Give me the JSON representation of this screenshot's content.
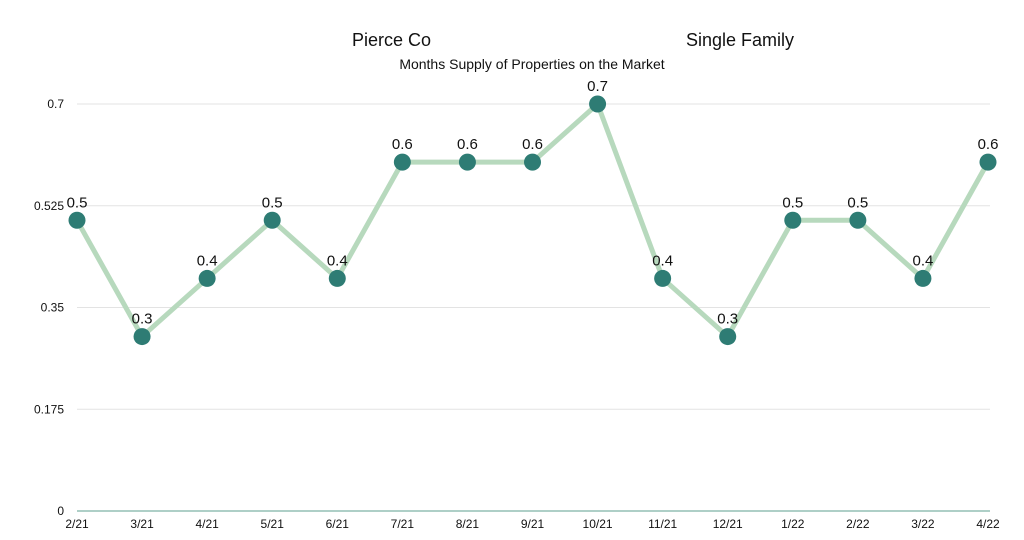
{
  "chart_data": {
    "type": "line",
    "title_left": "Pierce Co",
    "title_right": "Single Family",
    "subtitle": "Months Supply of Properties on the Market",
    "xlabel": "",
    "ylabel": "",
    "categories": [
      "2/21",
      "3/21",
      "4/21",
      "5/21",
      "6/21",
      "7/21",
      "8/21",
      "9/21",
      "10/21",
      "11/21",
      "12/21",
      "1/22",
      "2/22",
      "3/22",
      "4/22"
    ],
    "series": [
      {
        "values": [
          0.5,
          0.3,
          0.4,
          0.5,
          0.4,
          0.6,
          0.6,
          0.6,
          0.7,
          0.4,
          0.3,
          0.5,
          0.5,
          0.4,
          0.6
        ],
        "labels": [
          "0.5",
          "0.3",
          "0.4",
          "0.5",
          "0.4",
          "0.6",
          "0.6",
          "0.6",
          "0.7",
          "0.4",
          "0.3",
          "0.5",
          "0.5",
          "0.4",
          "0.6"
        ]
      }
    ],
    "yticks": [
      0,
      0.175,
      0.35,
      0.525,
      0.7
    ],
    "ytick_labels": [
      "0",
      "0.175",
      "0.35",
      "0.525",
      "0.7"
    ],
    "ylim": [
      0,
      0.7
    ],
    "grid": true,
    "legend": "none",
    "colors": {
      "line": "#b7d9bd",
      "marker": "#2e7c74",
      "grid": "#e3e3e3",
      "axis": "#5c9f8f",
      "text": "#111111"
    }
  }
}
